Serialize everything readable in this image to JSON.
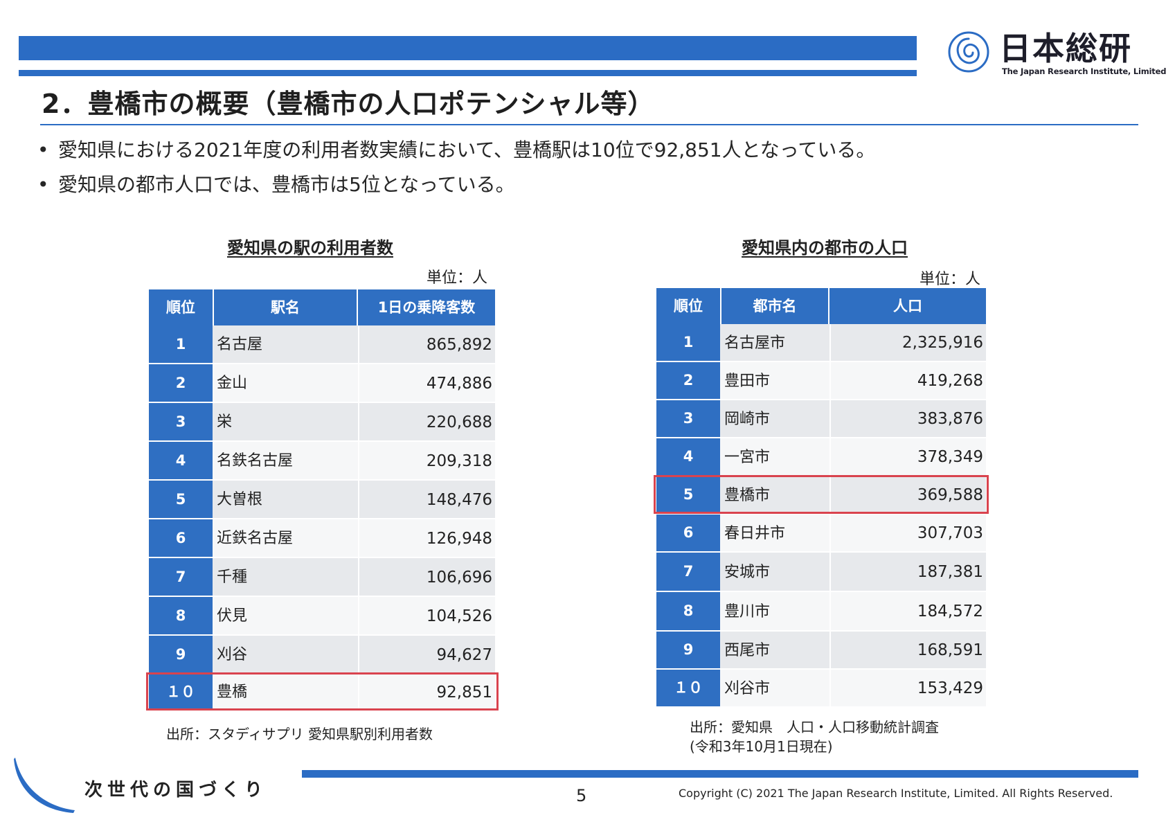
{
  "logo": {
    "name": "日本総研",
    "subtitle": "The Japan Research Institute, Limited",
    "accent": "#2b6cc4"
  },
  "title": "2．豊橋市の概要（豊橋市の人口ポテンシャル等）",
  "bullets": [
    "愛知県における2021年度の利用者数実績において、豊橋駅は10位で92,851人となっている。",
    "愛知県の都市人口では、豊橋市は5位となっている。"
  ],
  "bullet_mark": "•",
  "station_table": {
    "title": "愛知県の駅の利用者数",
    "unit": "単位：人",
    "headers": [
      "順位",
      "駅名",
      "1日の乗降客数"
    ],
    "rows": [
      {
        "rank": "1",
        "name": "名古屋",
        "value": "865,892"
      },
      {
        "rank": "2",
        "name": "金山",
        "value": "474,886"
      },
      {
        "rank": "3",
        "name": "栄",
        "value": "220,688"
      },
      {
        "rank": "4",
        "name": "名鉄名古屋",
        "value": "209,318"
      },
      {
        "rank": "5",
        "name": "大曽根",
        "value": "148,476"
      },
      {
        "rank": "6",
        "name": "近鉄名古屋",
        "value": "126,948"
      },
      {
        "rank": "7",
        "name": "千種",
        "value": "106,696"
      },
      {
        "rank": "8",
        "name": "伏見",
        "value": "104,526"
      },
      {
        "rank": "9",
        "name": "刈谷",
        "value": "94,627"
      },
      {
        "rank": "１０",
        "name": "豊橋",
        "value": "92,851"
      }
    ],
    "highlight_rank": "１０",
    "source": "出所：スタディサプリ 愛知県駅別利用者数"
  },
  "city_table": {
    "title": "愛知県内の都市の人口",
    "unit": "単位：人",
    "headers": [
      "順位",
      "都市名",
      "人口"
    ],
    "rows": [
      {
        "rank": "1",
        "name": "名古屋市",
        "value": "2,325,916"
      },
      {
        "rank": "2",
        "name": "豊田市",
        "value": "419,268"
      },
      {
        "rank": "3",
        "name": "岡崎市",
        "value": "383,876"
      },
      {
        "rank": "4",
        "name": "一宮市",
        "value": "378,349"
      },
      {
        "rank": "5",
        "name": "豊橋市",
        "value": "369,588"
      },
      {
        "rank": "6",
        "name": "春日井市",
        "value": "307,703"
      },
      {
        "rank": "7",
        "name": "安城市",
        "value": "187,381"
      },
      {
        "rank": "8",
        "name": "豊川市",
        "value": "184,572"
      },
      {
        "rank": "9",
        "name": "西尾市",
        "value": "168,591"
      },
      {
        "rank": "１０",
        "name": "刈谷市",
        "value": "153,429"
      }
    ],
    "highlight_rank": "5",
    "source_line1": "出所：愛知県　人口・人口移動統計調査",
    "source_line2": "(令和3年10月1日現在)"
  },
  "footer": {
    "slogan": "次世代の国づくり",
    "page": "5",
    "copyright": "Copyright (C) 2021 The Japan Research Institute, Limited. All Rights Reserved."
  },
  "colors": {
    "brand_blue": "#2b6cc4",
    "header_blue": "#2f6fc2",
    "highlight_red": "#d9434e",
    "row_shade": "#e7e9ec"
  }
}
